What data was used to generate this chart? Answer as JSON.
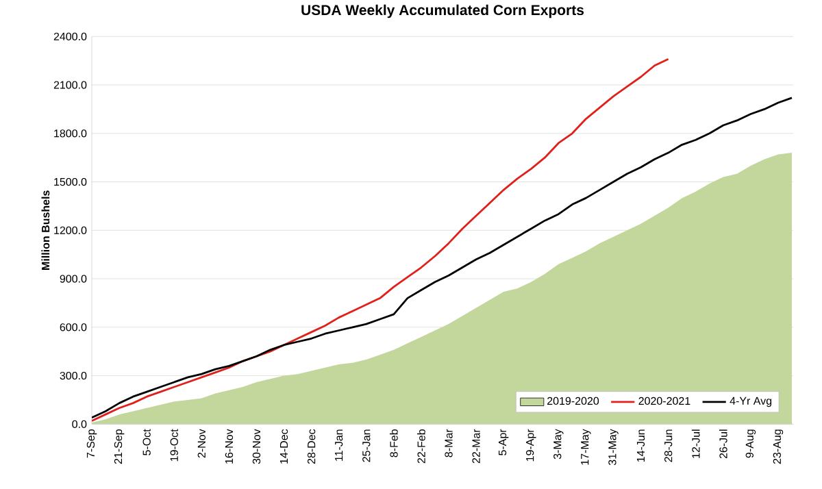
{
  "chart_data": {
    "type": "line",
    "title": "USDA Weekly Accumulated Corn Exports",
    "ylabel": "Million Bushels",
    "categories": [
      "7-Sep",
      null,
      "21-Sep",
      null,
      "5-Oct",
      null,
      "19-Oct",
      null,
      "2-Nov",
      null,
      "16-Nov",
      null,
      "30-Nov",
      null,
      "14-Dec",
      null,
      "28-Dec",
      null,
      "11-Jan",
      null,
      "25-Jan",
      null,
      "8-Feb",
      null,
      "22-Feb",
      null,
      "8-Mar",
      null,
      "22-Mar",
      null,
      "5-Apr",
      null,
      "19-Apr",
      null,
      "3-May",
      null,
      "17-May",
      null,
      "31-May",
      null,
      "14-Jun",
      null,
      "28-Jun",
      null,
      "12-Jul",
      null,
      "26-Jul",
      null,
      "9-Aug",
      null,
      "23-Aug",
      null
    ],
    "series": [
      {
        "name": "2019-2020",
        "type": "area",
        "color": "#c3d69b",
        "values": [
          10,
          30,
          60,
          80,
          100,
          120,
          140,
          150,
          160,
          190,
          210,
          230,
          260,
          280,
          300,
          310,
          330,
          350,
          370,
          380,
          400,
          430,
          460,
          500,
          540,
          580,
          620,
          670,
          720,
          770,
          820,
          840,
          880,
          930,
          990,
          1030,
          1070,
          1120,
          1160,
          1200,
          1240,
          1290,
          1340,
          1400,
          1440,
          1490,
          1530,
          1550,
          1600,
          1640,
          1670,
          1680
        ]
      },
      {
        "name": "2020-2021",
        "color": "#e0201b",
        "values": [
          20,
          60,
          100,
          130,
          170,
          200,
          230,
          260,
          290,
          320,
          350,
          390,
          420,
          450,
          490,
          530,
          570,
          610,
          660,
          700,
          740,
          780,
          850,
          910,
          970,
          1040,
          1120,
          1210,
          1290,
          1370,
          1450,
          1520,
          1580,
          1650,
          1740,
          1800,
          1890,
          1960,
          2030,
          2090,
          2150,
          2220,
          2260,
          null,
          null,
          null,
          null,
          null,
          null,
          null,
          null,
          null
        ]
      },
      {
        "name": "4-Yr Avg",
        "color": "#000000",
        "values": [
          40,
          80,
          130,
          170,
          200,
          230,
          260,
          290,
          310,
          340,
          360,
          390,
          420,
          460,
          490,
          510,
          530,
          560,
          580,
          600,
          620,
          650,
          680,
          780,
          830,
          880,
          920,
          970,
          1020,
          1060,
          1110,
          1160,
          1210,
          1260,
          1300,
          1360,
          1400,
          1450,
          1500,
          1550,
          1590,
          1640,
          1680,
          1730,
          1760,
          1800,
          1850,
          1880,
          1920,
          1950,
          1990,
          2020
        ]
      }
    ],
    "ylim": [
      0,
      2400
    ],
    "yticks": [
      {
        "value": 0,
        "label": "0.0"
      },
      {
        "value": 300,
        "label": "300.0"
      },
      {
        "value": 600,
        "label": "600.0"
      },
      {
        "value": 900,
        "label": "900.0"
      },
      {
        "value": 1200,
        "label": "1200.0"
      },
      {
        "value": 1500,
        "label": "1500.0"
      },
      {
        "value": 1800,
        "label": "1800.0"
      },
      {
        "value": 2100,
        "label": "2100.0"
      },
      {
        "value": 2400,
        "label": "2400.0"
      }
    ],
    "grid": "y",
    "legend": "bottom right",
    "marker": "none",
    "line_style": "solid"
  }
}
